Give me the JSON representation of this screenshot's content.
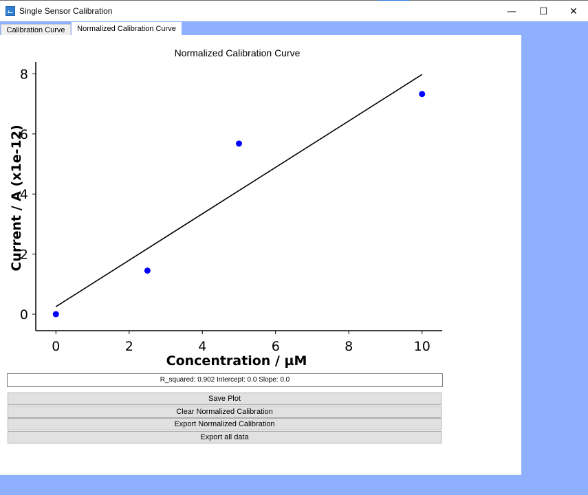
{
  "window": {
    "title": "Single Sensor Calibration",
    "minimize_glyph": "—",
    "maximize_glyph": "☐",
    "close_glyph": "✕"
  },
  "tabs": [
    {
      "label": "Calibration Curve",
      "active": false
    },
    {
      "label": "Normalized Calibration Curve",
      "active": true
    }
  ],
  "plot": {
    "title": "Normalized Calibration Curve"
  },
  "chart_data": {
    "type": "scatter",
    "title": "Normalized Calibration Curve",
    "xlabel": "Concentration / µM",
    "ylabel": "Current / A (x1e-12)",
    "x_ticks": [
      "0",
      "2",
      "4",
      "6",
      "8",
      "10"
    ],
    "y_ticks": [
      "0",
      "2",
      "4",
      "6",
      "8"
    ],
    "xlim": [
      -0.55,
      10.55
    ],
    "ylim": [
      -0.55,
      8.4
    ],
    "series": [
      {
        "points": [
          [
            0,
            0
          ],
          [
            2.5,
            1.45
          ],
          [
            5,
            5.68
          ],
          [
            10,
            7.33
          ]
        ],
        "color": "#0000ff"
      }
    ],
    "fit_line": {
      "from": [
        0,
        0.25
      ],
      "to": [
        10,
        7.98
      ],
      "color": "#000000"
    },
    "grid": false
  },
  "status": {
    "text": "R_squared: 0.902 Intercept: 0.0 Slope: 0.0"
  },
  "buttons": {
    "save": "Save Plot",
    "clear": "Clear Normalized Calibration",
    "export_norm": "Export Normalized Calibration",
    "export_all": "Export all data"
  }
}
